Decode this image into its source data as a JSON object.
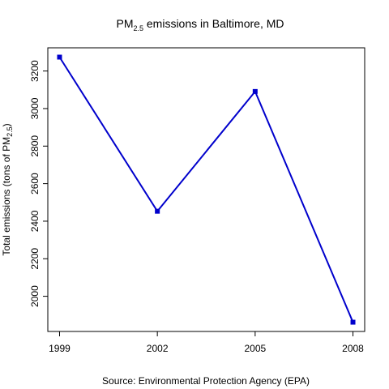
{
  "chart_data": {
    "type": "line",
    "title_main": "PM",
    "title_sub": "2.5",
    "title_rest": " emissions in Baltimore, MD",
    "xlabel": "Source: Environmental Protection Agency (EPA)",
    "ylabel_main": "Total emissions (tons of  PM",
    "ylabel_sub": "2.5",
    "ylabel_end": ")",
    "x": [
      1999,
      2002,
      2005,
      2008
    ],
    "x_tick_labels": [
      "1999",
      "2002",
      "2005",
      "2008"
    ],
    "y": [
      3274,
      2453,
      3091,
      1862
    ],
    "y_ticks": [
      2000,
      2200,
      2400,
      2600,
      2800,
      3000,
      3200
    ],
    "y_tick_labels": [
      "2000",
      "2200",
      "2400",
      "2600",
      "2800",
      "3000",
      "3200"
    ],
    "xlim": [
      1998.64,
      2008.36
    ],
    "ylim": [
      1812.6,
      3323.6
    ],
    "grid": false,
    "series_color": "#0000cc"
  }
}
